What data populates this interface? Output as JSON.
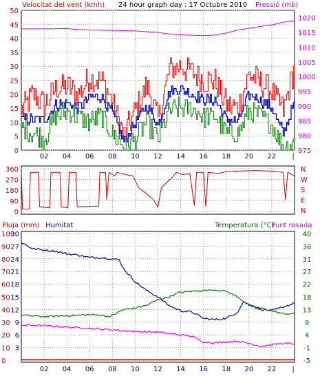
{
  "header": {
    "wind_label": "Velocitat del vent (kmh)",
    "title": "24 hour graph day : 17 Octubre 2010",
    "pressure_label": "Pressió (mb)"
  },
  "bottom_header": {
    "rain_label": "Pluja (mm)",
    "humidity_label": "Humitat",
    "temp_label": "Temperatura (°C)",
    "dew_label": "Punt rosada"
  },
  "colors": {
    "background": "#ffffff",
    "panel_bg": "#ffffff",
    "gust": "#e00000",
    "wind": "#008000",
    "avg_wind": "#0000cc",
    "pressure": "#dd00dd",
    "direction": "#cc0000",
    "humidity": "#0000aa",
    "temperature": "#007700",
    "dew": "#ee00ee",
    "rain": "#dd0000",
    "grid": "#a0a0a0",
    "axis_red": "#cc0000",
    "axis_blue": "#0000aa",
    "axis_green": "#006600",
    "axis_magenta": "#cc00cc"
  },
  "chart_data": [
    {
      "id": "wind_pressure",
      "type": "line",
      "x_ticks": [
        "02",
        "04",
        "06",
        "08",
        "10",
        "12",
        "14",
        "16",
        "18",
        "20",
        "22",
        "|"
      ],
      "y_left": {
        "label": "Velocitat del vent (kmh)",
        "ticks": [
          0,
          5,
          10,
          15,
          20,
          25,
          30,
          35,
          40,
          45,
          50
        ],
        "lim": [
          0,
          50
        ]
      },
      "y_right": {
        "label": "Pressió (mb)",
        "ticks": [
          975,
          980,
          985,
          990,
          995,
          1000,
          1005,
          1010,
          1015,
          1020
        ],
        "lim": [
          975,
          1022.5
        ]
      },
      "series": [
        {
          "id": "pressure",
          "axis": "right",
          "points": [
            [
              0,
              1016.2
            ],
            [
              2,
              1016.2
            ],
            [
              4,
              1016.3
            ],
            [
              5,
              1016
            ],
            [
              6,
              1015.8
            ],
            [
              8,
              1015.7
            ],
            [
              10,
              1015.5
            ],
            [
              12,
              1015
            ],
            [
              13,
              1014.5
            ],
            [
              14,
              1014.2
            ],
            [
              16,
              1013.9
            ],
            [
              17,
              1014.1
            ],
            [
              18,
              1014.8
            ],
            [
              19,
              1015.8
            ],
            [
              20,
              1016.4
            ],
            [
              21,
              1017
            ],
            [
              22,
              1017.5
            ],
            [
              23,
              1018.5
            ],
            [
              24,
              1019
            ]
          ]
        },
        {
          "id": "gust",
          "axis": "left",
          "anchors": [
            [
              0,
              14
            ],
            [
              1,
              20
            ],
            [
              2,
              16
            ],
            [
              3,
              22
            ],
            [
              4,
              23
            ],
            [
              5,
              20
            ],
            [
              6,
              26
            ],
            [
              7,
              25
            ],
            [
              8,
              17
            ],
            [
              9,
              5
            ],
            [
              10,
              14
            ],
            [
              11,
              23
            ],
            [
              12,
              11
            ],
            [
              13,
              29
            ],
            [
              14,
              30
            ],
            [
              15,
              28
            ],
            [
              16,
              25
            ],
            [
              17,
              25
            ],
            [
              18,
              16
            ],
            [
              19,
              15
            ],
            [
              20,
              27
            ],
            [
              21,
              24
            ],
            [
              22,
              21
            ],
            [
              23,
              14
            ],
            [
              24,
              30
            ]
          ],
          "noise": 5
        },
        {
          "id": "avg",
          "axis": "left",
          "anchors": [
            [
              0,
              11
            ],
            [
              1,
              11
            ],
            [
              2,
              11
            ],
            [
              3,
              16
            ],
            [
              4,
              17
            ],
            [
              5,
              15
            ],
            [
              6,
              19
            ],
            [
              7,
              19
            ],
            [
              8,
              13
            ],
            [
              9,
              3
            ],
            [
              10,
              10
            ],
            [
              11,
              16
            ],
            [
              12,
              9
            ],
            [
              13,
              21
            ],
            [
              14,
              22
            ],
            [
              15,
              20
            ],
            [
              16,
              18
            ],
            [
              17,
              18
            ],
            [
              18,
              11
            ],
            [
              19,
              10
            ],
            [
              20,
              20
            ],
            [
              21,
              18
            ],
            [
              22,
              15
            ],
            [
              23,
              6
            ],
            [
              24,
              17
            ]
          ],
          "noise": 2
        },
        {
          "id": "wind",
          "axis": "left",
          "anchors": [
            [
              0,
              8
            ],
            [
              1,
              6
            ],
            [
              2,
              4
            ],
            [
              3,
              12
            ],
            [
              4,
              14
            ],
            [
              5,
              12
            ],
            [
              6,
              10
            ],
            [
              7,
              12
            ],
            [
              8,
              6
            ],
            [
              9,
              1
            ],
            [
              10,
              4
            ],
            [
              11,
              10
            ],
            [
              12,
              4
            ],
            [
              13,
              14
            ],
            [
              14,
              15
            ],
            [
              15,
              15
            ],
            [
              16,
              12
            ],
            [
              17,
              12
            ],
            [
              18,
              6
            ],
            [
              19,
              6
            ],
            [
              20,
              14
            ],
            [
              21,
              12
            ],
            [
              22,
              9
            ],
            [
              23,
              1
            ],
            [
              24,
              3
            ]
          ],
          "noise": 4
        }
      ]
    },
    {
      "id": "direction",
      "type": "line",
      "y_left": {
        "ticks": [
          0,
          90,
          180,
          270,
          360
        ],
        "lim": [
          0,
          360
        ]
      },
      "y_right": {
        "ticks": [
          "N",
          "W",
          "S",
          "E",
          "N"
        ]
      },
      "series": [
        {
          "id": "wind_direction",
          "points": [
            [
              0,
              330
            ],
            [
              0.1,
              20
            ],
            [
              0.7,
              20
            ],
            [
              0.8,
              330
            ],
            [
              1.5,
              330
            ],
            [
              1.6,
              40
            ],
            [
              2.5,
              30
            ],
            [
              2.6,
              330
            ],
            [
              3.4,
              330
            ],
            [
              3.5,
              40
            ],
            [
              4.1,
              30
            ],
            [
              4.2,
              330
            ],
            [
              4.8,
              330
            ],
            [
              4.9,
              40
            ],
            [
              6.8,
              45
            ],
            [
              6.9,
              330
            ],
            [
              7.4,
              330
            ],
            [
              7.5,
              100
            ],
            [
              7.7,
              330
            ],
            [
              8.2,
              300
            ],
            [
              8.4,
              330
            ],
            [
              9.2,
              310
            ],
            [
              9.8,
              300
            ],
            [
              10.3,
              200
            ],
            [
              11,
              150
            ],
            [
              11.6,
              100
            ],
            [
              12,
              40
            ],
            [
              12.3,
              200
            ],
            [
              12.6,
              230
            ],
            [
              13.2,
              280
            ],
            [
              13.6,
              330
            ],
            [
              14.2,
              310
            ],
            [
              14.8,
              320
            ],
            [
              15.2,
              50
            ],
            [
              15.4,
              330
            ],
            [
              16,
              330
            ],
            [
              16.2,
              40
            ],
            [
              16.4,
              330
            ],
            [
              17.3,
              320
            ],
            [
              18,
              335
            ],
            [
              19,
              340
            ],
            [
              20.5,
              345
            ],
            [
              22,
              340
            ],
            [
              23,
              330
            ],
            [
              23.2,
              100
            ],
            [
              23.4,
              330
            ],
            [
              24,
              300
            ]
          ]
        }
      ]
    },
    {
      "id": "hum_temp",
      "type": "line",
      "y_left_rain": {
        "label": "Pluja (mm)",
        "ticks": [
          0,
          10,
          20,
          30,
          40,
          50,
          60,
          70,
          80,
          90,
          100
        ],
        "lim": [
          0,
          100
        ]
      },
      "y_left_hum": {
        "label": "Humitat",
        "ticks": [
          3,
          6,
          9,
          12,
          15,
          18,
          21,
          24,
          27,
          30
        ],
        "lim": [
          0,
          30
        ]
      },
      "y_right": {
        "label": "Temperatura (°C)",
        "ticks": [
          -5,
          -1,
          4,
          9,
          13,
          18,
          22,
          27,
          31,
          36,
          40
        ],
        "lim": [
          -5,
          40
        ]
      },
      "series": [
        {
          "id": "humidity",
          "axis": "pct",
          "points": [
            [
              0,
              93
            ],
            [
              1,
              88
            ],
            [
              2,
              87
            ],
            [
              3,
              86
            ],
            [
              4,
              84
            ],
            [
              5,
              83
            ],
            [
              6,
              81
            ],
            [
              7,
              81
            ],
            [
              8,
              80
            ],
            [
              8.6,
              79
            ],
            [
              9,
              72
            ],
            [
              10,
              62
            ],
            [
              11,
              55
            ],
            [
              12,
              50
            ],
            [
              13,
              43
            ],
            [
              14,
              39
            ],
            [
              15,
              38
            ],
            [
              16,
              33
            ],
            [
              17,
              32
            ],
            [
              18,
              33
            ],
            [
              19,
              38
            ],
            [
              19.5,
              46
            ],
            [
              20,
              44
            ],
            [
              21,
              40
            ],
            [
              22,
              39
            ],
            [
              23,
              42
            ],
            [
              24,
              45
            ]
          ]
        },
        {
          "id": "temperature",
          "axis": "right",
          "points": [
            [
              0,
              11
            ],
            [
              2,
              10.5
            ],
            [
              4,
              10.8
            ],
            [
              6,
              11.2
            ],
            [
              7,
              11
            ],
            [
              7.8,
              10.5
            ],
            [
              8,
              11
            ],
            [
              9,
              13
            ],
            [
              10,
              13.5
            ],
            [
              11,
              14.5
            ],
            [
              12,
              16.5
            ],
            [
              13,
              17.5
            ],
            [
              13.8,
              19
            ],
            [
              15,
              19.5
            ],
            [
              17,
              20
            ],
            [
              18,
              19.5
            ],
            [
              19,
              17.5
            ],
            [
              20,
              14.5
            ],
            [
              21,
              13.5
            ],
            [
              22,
              12.5
            ],
            [
              23,
              11.5
            ],
            [
              24,
              11.5
            ]
          ]
        },
        {
          "id": "dew_point",
          "axis": "right",
          "points": [
            [
              0,
              7.5
            ],
            [
              2,
              7.3
            ],
            [
              4,
              6.8
            ],
            [
              6,
              6.3
            ],
            [
              8,
              5.8
            ],
            [
              10,
              5.2
            ],
            [
              12,
              5
            ],
            [
              14,
              4
            ],
            [
              15,
              3.5
            ],
            [
              16,
              1.5
            ],
            [
              17,
              1.2
            ],
            [
              18,
              1.5
            ],
            [
              19,
              1.8
            ],
            [
              20,
              1
            ],
            [
              21,
              0
            ],
            [
              22,
              0.5
            ],
            [
              23,
              1
            ],
            [
              24,
              0.8
            ]
          ]
        },
        {
          "id": "rain",
          "axis": "pct",
          "points": [
            [
              0,
              0.5
            ],
            [
              24,
              0.5
            ]
          ]
        }
      ]
    }
  ]
}
